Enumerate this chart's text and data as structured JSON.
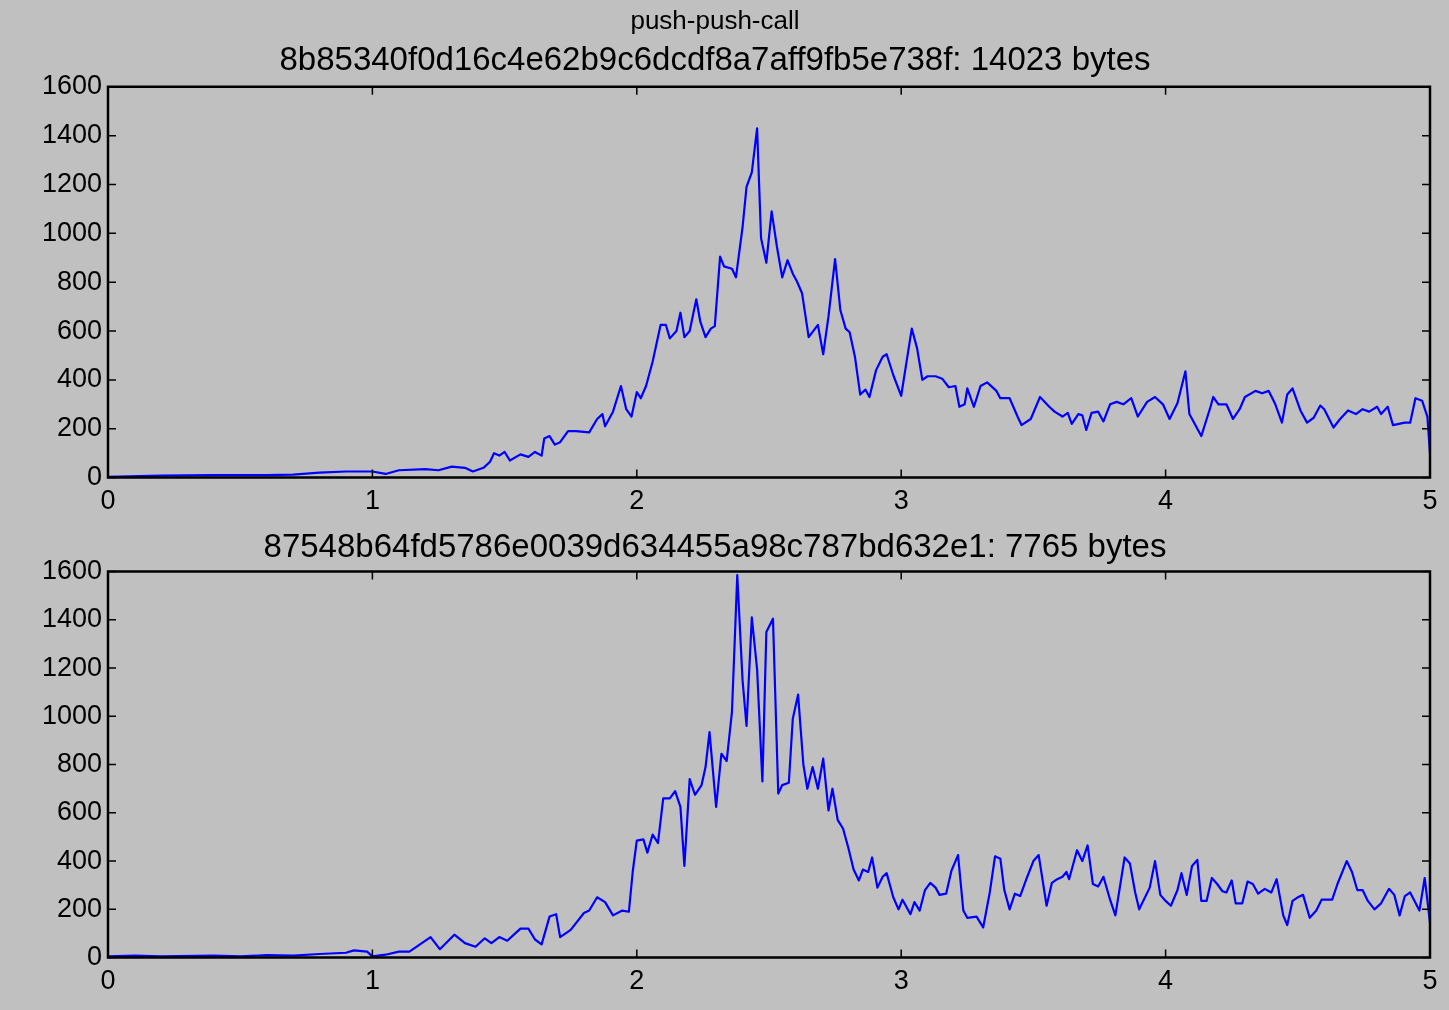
{
  "chart_data": [
    {
      "type": "line",
      "title": "push-push-call",
      "subtitle": "8b85340f0d16c4e62b9c6dcdf8a7aff9fb5e738f: 14023 bytes",
      "marker": "none",
      "line_style": "solid",
      "x": [
        0,
        0.2,
        0.4,
        0.6,
        0.7,
        0.8,
        0.9,
        1.0,
        1.05,
        1.1,
        1.2,
        1.25,
        1.3,
        1.35,
        1.38,
        1.42,
        1.445,
        1.46,
        1.48,
        1.5,
        1.52,
        1.56,
        1.59,
        1.615,
        1.64,
        1.65,
        1.67,
        1.69,
        1.71,
        1.74,
        1.77,
        1.82,
        1.85,
        1.87,
        1.88,
        1.91,
        1.94,
        1.96,
        1.98,
        2.0,
        2.015,
        2.035,
        2.06,
        2.09,
        2.11,
        2.125,
        2.15,
        2.165,
        2.18,
        2.2,
        2.225,
        2.24,
        2.26,
        2.28,
        2.295,
        2.315,
        2.33,
        2.36,
        2.375,
        2.4,
        2.415,
        2.435,
        2.455,
        2.47,
        2.49,
        2.51,
        2.53,
        2.55,
        2.57,
        2.59,
        2.605,
        2.625,
        2.65,
        2.685,
        2.705,
        2.725,
        2.75,
        2.77,
        2.79,
        2.805,
        2.825,
        2.845,
        2.865,
        2.88,
        2.905,
        2.93,
        2.945,
        2.97,
        3.0,
        3.04,
        3.06,
        3.08,
        3.1,
        3.13,
        3.155,
        3.18,
        3.205,
        3.22,
        3.24,
        3.25,
        3.275,
        3.3,
        3.325,
        3.36,
        3.375,
        3.41,
        3.44,
        3.455,
        3.49,
        3.525,
        3.56,
        3.58,
        3.61,
        3.63,
        3.645,
        3.67,
        3.685,
        3.7,
        3.72,
        3.745,
        3.765,
        3.79,
        3.815,
        3.84,
        3.87,
        3.895,
        3.93,
        3.96,
        3.99,
        4.015,
        4.045,
        4.075,
        4.09,
        4.135,
        4.17,
        4.18,
        4.2,
        4.23,
        4.255,
        4.28,
        4.3,
        4.34,
        4.365,
        4.39,
        4.415,
        4.44,
        4.46,
        4.48,
        4.51,
        4.535,
        4.56,
        4.585,
        4.6,
        4.635,
        4.66,
        4.69,
        4.72,
        4.745,
        4.77,
        4.8,
        4.815,
        4.84,
        4.86,
        4.905,
        4.925,
        4.945,
        4.97,
        4.99,
        5.0
      ],
      "series": [
        {
          "color": "#0000ff",
          "values": [
            3,
            8,
            10,
            10,
            12,
            20,
            25,
            25,
            15,
            30,
            35,
            30,
            45,
            40,
            25,
            40,
            65,
            100,
            90,
            105,
            70,
            95,
            85,
            105,
            90,
            160,
            170,
            135,
            145,
            190,
            190,
            185,
            240,
            260,
            210,
            270,
            375,
            280,
            250,
            350,
            325,
            375,
            475,
            625,
            625,
            570,
            600,
            675,
            575,
            600,
            730,
            640,
            575,
            610,
            620,
            905,
            865,
            855,
            820,
            1025,
            1190,
            1250,
            1430,
            980,
            880,
            1090,
            945,
            820,
            890,
            835,
            805,
            755,
            575,
            625,
            505,
            660,
            895,
            685,
            610,
            595,
            495,
            340,
            360,
            330,
            440,
            495,
            505,
            420,
            335,
            610,
            530,
            400,
            415,
            415,
            405,
            370,
            375,
            290,
            300,
            365,
            290,
            375,
            390,
            355,
            325,
            325,
            250,
            215,
            240,
            330,
            290,
            270,
            250,
            265,
            220,
            260,
            255,
            195,
            265,
            270,
            230,
            300,
            310,
            300,
            325,
            250,
            310,
            330,
            300,
            240,
            305,
            435,
            260,
            170,
            290,
            330,
            300,
            300,
            240,
            280,
            330,
            355,
            345,
            355,
            300,
            225,
            340,
            365,
            275,
            225,
            245,
            295,
            280,
            205,
            240,
            275,
            260,
            280,
            270,
            290,
            260,
            290,
            215,
            225,
            225,
            325,
            315,
            250,
            100
          ]
        }
      ],
      "xlim": [
        0,
        5
      ],
      "xticks": [
        0,
        1,
        2,
        3,
        4,
        5
      ],
      "ylim": [
        0,
        1600
      ],
      "yticks": [
        0,
        200,
        400,
        600,
        800,
        1000,
        1200,
        1400,
        1600
      ]
    },
    {
      "type": "line",
      "title": "87548b64fd5786e0039d634455a98c787bd632e1: 7765 bytes",
      "marker": "none",
      "line_style": "solid",
      "x": [
        0,
        0.1,
        0.2,
        0.4,
        0.5,
        0.6,
        0.7,
        0.8,
        0.9,
        0.93,
        0.98,
        1.0,
        1.05,
        1.1,
        1.14,
        1.22,
        1.255,
        1.31,
        1.35,
        1.39,
        1.425,
        1.45,
        1.48,
        1.51,
        1.56,
        1.59,
        1.615,
        1.64,
        1.67,
        1.695,
        1.71,
        1.75,
        1.8,
        1.82,
        1.85,
        1.88,
        1.91,
        1.945,
        1.97,
        1.985,
        2.0,
        2.025,
        2.04,
        2.06,
        2.08,
        2.1,
        2.125,
        2.145,
        2.165,
        2.18,
        2.2,
        2.22,
        2.245,
        2.26,
        2.275,
        2.3,
        2.32,
        2.34,
        2.36,
        2.38,
        2.4,
        2.415,
        2.435,
        2.455,
        2.475,
        2.49,
        2.515,
        2.535,
        2.55,
        2.575,
        2.59,
        2.61,
        2.63,
        2.645,
        2.665,
        2.685,
        2.705,
        2.725,
        2.74,
        2.76,
        2.78,
        2.8,
        2.82,
        2.84,
        2.855,
        2.875,
        2.89,
        2.91,
        2.93,
        2.945,
        2.97,
        2.99,
        3.005,
        3.035,
        3.05,
        3.07,
        3.09,
        3.11,
        3.13,
        3.145,
        3.17,
        3.19,
        3.215,
        3.235,
        3.25,
        3.285,
        3.31,
        3.335,
        3.355,
        3.375,
        3.39,
        3.41,
        3.43,
        3.45,
        3.475,
        3.5,
        3.52,
        3.55,
        3.57,
        3.59,
        3.61,
        3.625,
        3.635,
        3.665,
        3.685,
        3.705,
        3.725,
        3.745,
        3.765,
        3.79,
        3.81,
        3.845,
        3.865,
        3.885,
        3.9,
        3.94,
        3.96,
        3.98,
        4.0,
        4.02,
        4.045,
        4.06,
        4.08,
        4.1,
        4.12,
        4.135,
        4.155,
        4.175,
        4.195,
        4.215,
        4.23,
        4.25,
        4.265,
        4.29,
        4.31,
        4.33,
        4.35,
        4.375,
        4.4,
        4.42,
        4.445,
        4.46,
        4.48,
        4.5,
        4.52,
        4.545,
        4.57,
        4.59,
        4.63,
        4.65,
        4.685,
        4.705,
        4.725,
        4.745,
        4.765,
        4.79,
        4.815,
        4.845,
        4.865,
        4.885,
        4.905,
        4.925,
        4.96,
        4.98,
        5.0
      ],
      "series": [
        {
          "color": "#0000ff",
          "values": [
            5,
            8,
            5,
            8,
            5,
            10,
            8,
            15,
            20,
            30,
            25,
            5,
            12,
            25,
            25,
            85,
            35,
            95,
            60,
            45,
            80,
            60,
            85,
            70,
            120,
            120,
            75,
            55,
            170,
            180,
            85,
            115,
            185,
            195,
            250,
            230,
            175,
            195,
            190,
            360,
            485,
            490,
            435,
            510,
            475,
            660,
            660,
            690,
            625,
            380,
            740,
            675,
            715,
            790,
            935,
            625,
            845,
            815,
            1020,
            1585,
            1150,
            960,
            1410,
            1195,
            730,
            1350,
            1405,
            680,
            715,
            725,
            990,
            1090,
            800,
            700,
            790,
            700,
            825,
            610,
            700,
            570,
            535,
            455,
            365,
            320,
            365,
            355,
            415,
            290,
            335,
            350,
            250,
            200,
            240,
            180,
            230,
            195,
            280,
            310,
            290,
            260,
            265,
            360,
            425,
            195,
            165,
            170,
            125,
            270,
            420,
            410,
            280,
            200,
            265,
            255,
            330,
            400,
            425,
            215,
            310,
            325,
            335,
            355,
            325,
            445,
            400,
            465,
            305,
            295,
            335,
            240,
            175,
            415,
            390,
            270,
            200,
            290,
            400,
            260,
            235,
            215,
            280,
            350,
            260,
            380,
            405,
            235,
            235,
            330,
            305,
            275,
            270,
            320,
            225,
            225,
            315,
            305,
            265,
            285,
            270,
            325,
            175,
            135,
            235,
            250,
            260,
            165,
            195,
            240,
            240,
            305,
            400,
            355,
            280,
            280,
            235,
            200,
            225,
            285,
            260,
            175,
            255,
            270,
            195,
            330,
            145
          ]
        }
      ],
      "xlim": [
        0,
        5
      ],
      "xticks": [
        0,
        1,
        2,
        3,
        4,
        5
      ],
      "ylim": [
        0,
        1600
      ],
      "yticks": [
        0,
        200,
        400,
        600,
        800,
        1000,
        1200,
        1400,
        1600
      ]
    }
  ]
}
